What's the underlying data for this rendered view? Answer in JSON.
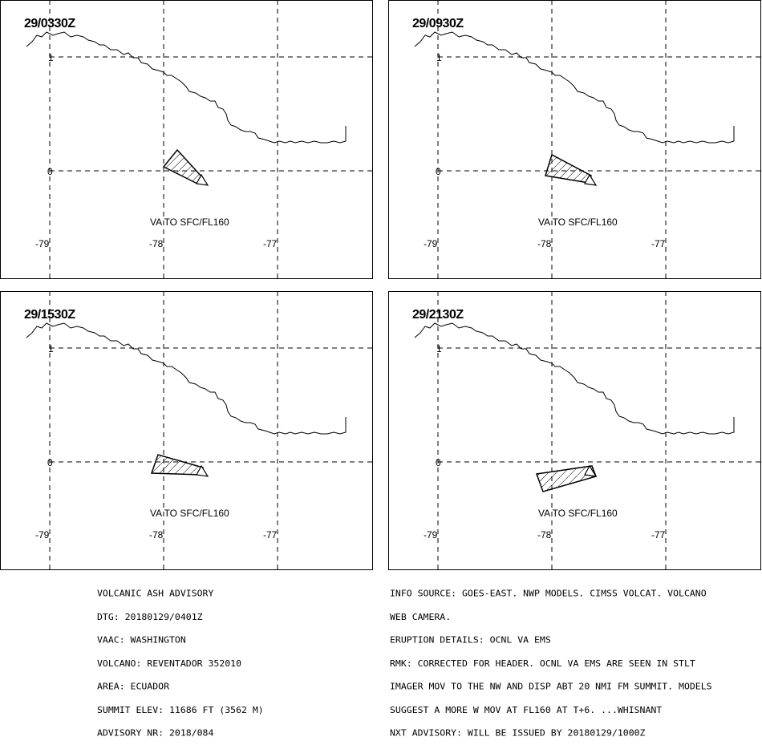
{
  "panels": [
    {
      "time": "29/0330Z",
      "layer": "VA TO SFC/FL160",
      "lat_labels": [
        "1",
        "0"
      ],
      "lon_labels": [
        "-79",
        "-78",
        "-77"
      ]
    },
    {
      "time": "29/0930Z",
      "layer": "VA TO SFC/FL160",
      "lat_labels": [
        "1",
        "0"
      ],
      "lon_labels": [
        "-79",
        "-78",
        "-77"
      ]
    },
    {
      "time": "29/1530Z",
      "layer": "VA TO SFC/FL160",
      "lat_labels": [
        "1",
        "0"
      ],
      "lon_labels": [
        "-79",
        "-78",
        "-77"
      ]
    },
    {
      "time": "29/2130Z",
      "layer": "VA TO SFC/FL160",
      "lat_labels": [
        "1",
        "0"
      ],
      "lon_labels": [
        "-79",
        "-78",
        "-77"
      ]
    }
  ],
  "advisory": {
    "lines": [
      "VOLCANIC ASH ADVISORY",
      "DTG: 20180129/0401Z",
      "VAAC: WASHINGTON",
      "VOLCANO: REVENTADOR 352010",
      "AREA: ECUADOR",
      "SUMMIT ELEV: 11686 FT (3562 M)",
      "ADVISORY NR: 2018/084"
    ]
  },
  "remarks": {
    "lines": [
      "INFO SOURCE: GOES-EAST. NWP MODELS. CIMSS VOLCAT. VOLCANO",
      "WEB CAMERA.",
      "ERUPTION DETAILS: OCNL VA EMS",
      "RMK: CORRECTED FOR HEADER. OCNL VA EMS ARE SEEN IN STLT",
      "IMAGER MOV TO THE NW AND DISP ABT 20 NMI FM SUMMIT. MODELS",
      "SUGGEST A MORE W MOV AT FL160 AT T+6. ...WHISNANT",
      "NXT ADVISORY: WILL BE ISSUED BY 20180129/1000Z"
    ]
  }
}
